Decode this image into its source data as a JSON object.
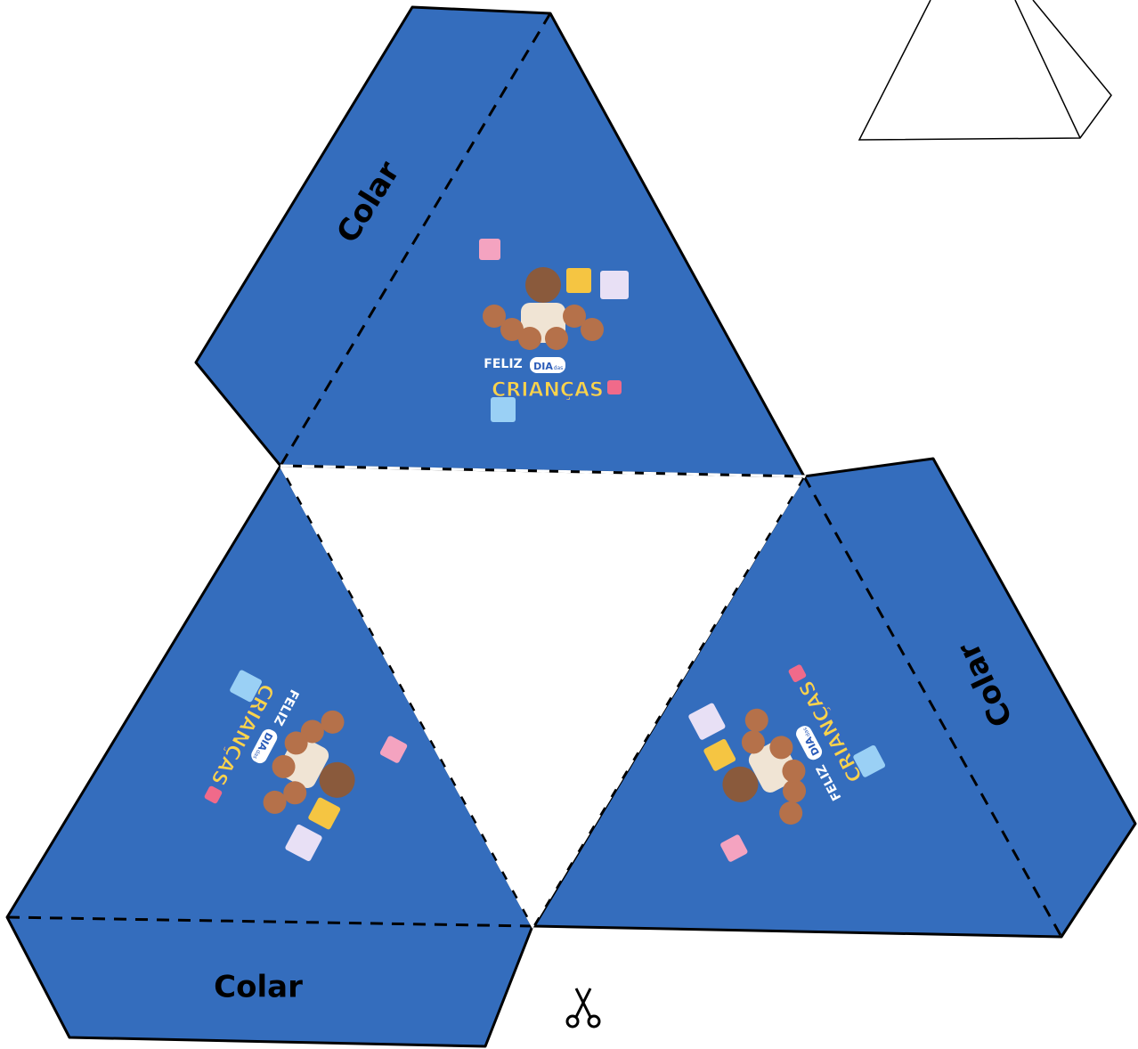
{
  "glue_labels": [
    "Colar",
    "Colar",
    "Colar"
  ],
  "illustration": {
    "line1": "FELIZ",
    "line2": "DIA",
    "line2_small": "das",
    "line3": "CRIANÇAS"
  }
}
